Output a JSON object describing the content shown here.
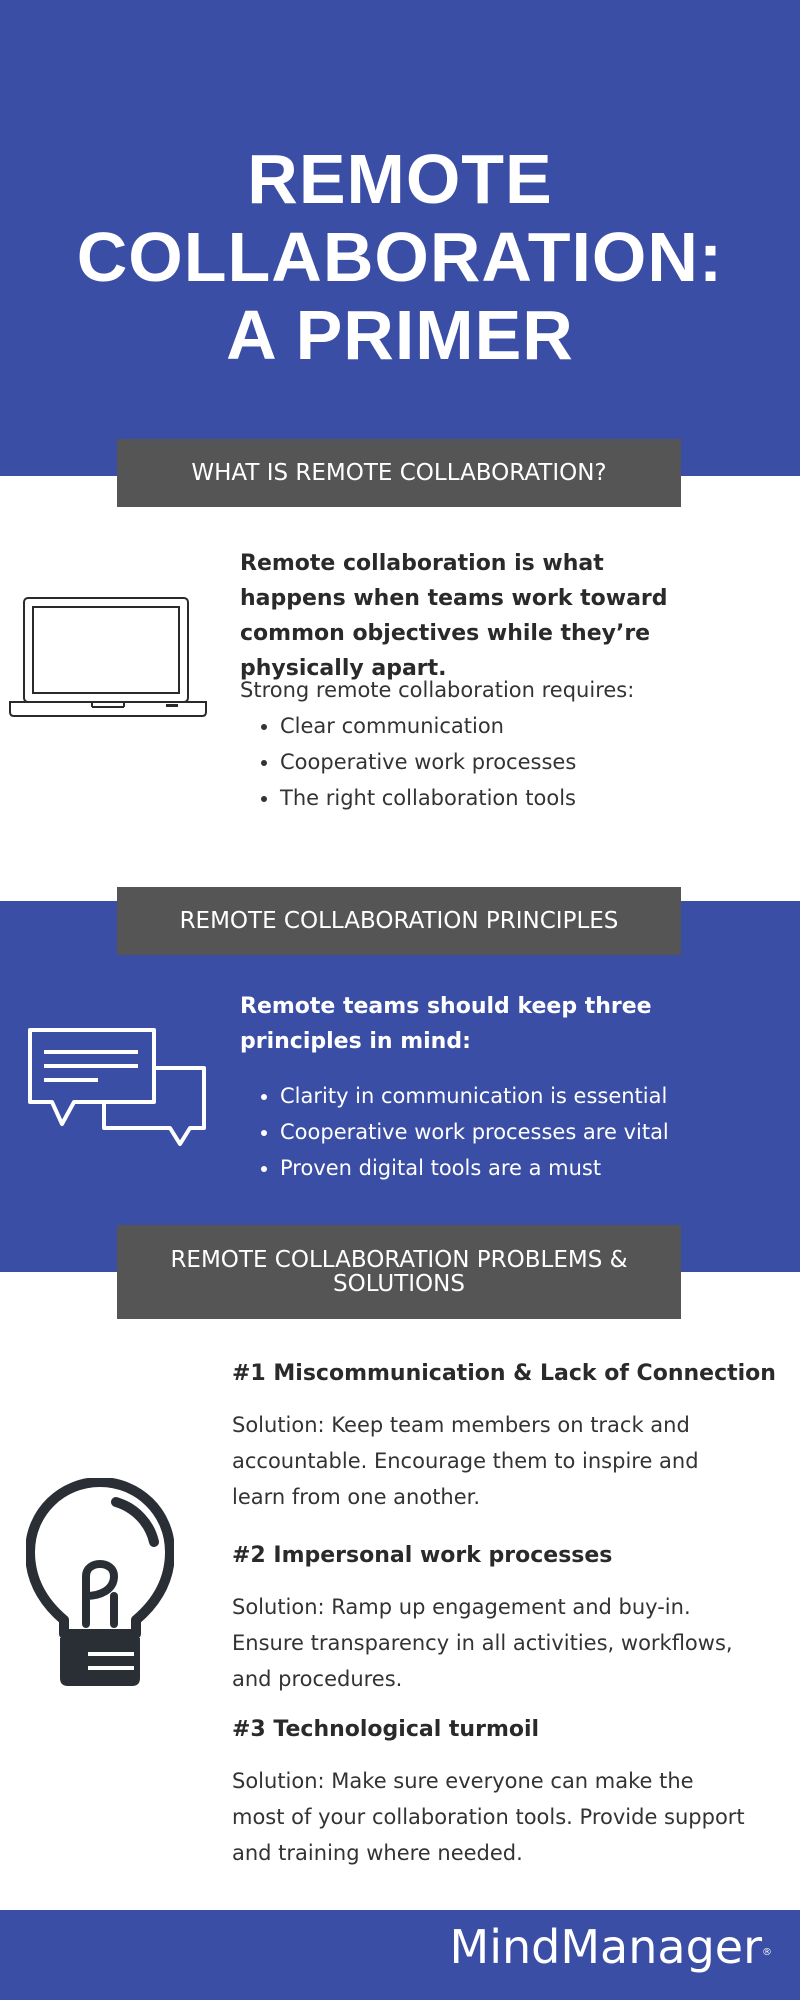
{
  "title": {
    "line1": "REMOTE",
    "line2": "COLLABORATION:",
    "line3": "A PRIMER"
  },
  "section1": {
    "header": "WHAT IS REMOTE COLLABORATION?",
    "icon": "laptop-icon",
    "lead": "Remote collaboration is what happens when teams work toward common objectives while they’re physically apart.",
    "intro": "Strong remote collaboration requires:",
    "bullets": [
      "Clear communication",
      "Cooperative work processes",
      "The right collaboration tools"
    ]
  },
  "section2": {
    "header": "REMOTE COLLABORATION PRINCIPLES",
    "icon": "chat-bubbles-icon",
    "lead": "Remote teams should keep three principles in mind:",
    "bullets": [
      "Clarity in communication is essential",
      "Cooperative work processes are vital",
      "Proven digital tools are a must"
    ]
  },
  "section3": {
    "header_line1": "REMOTE COLLABORATION PROBLEMS &",
    "header_line2": "SOLUTIONS",
    "icon": "lightbulb-icon",
    "problems": [
      {
        "title": "#1 Miscommunication & Lack of Connection",
        "solution": "Solution:  Keep team members on track and accountable. Encourage them to inspire and learn from one another."
      },
      {
        "title": "#2 Impersonal work processes",
        "solution": "Solution:  Ramp up engagement and buy-in. Ensure transparency in all activities, workflows, and procedures."
      },
      {
        "title": "#3 Technological turmoil",
        "solution": "Solution:  Make sure everyone can make the most of your collaboration tools. Provide support and training where needed."
      }
    ]
  },
  "footer": {
    "logo": "MindManager",
    "logo_mark": "®"
  },
  "colors": {
    "brand_blue": "#3b4ea5",
    "header_gray": "#555555",
    "text_dark": "#333333"
  }
}
